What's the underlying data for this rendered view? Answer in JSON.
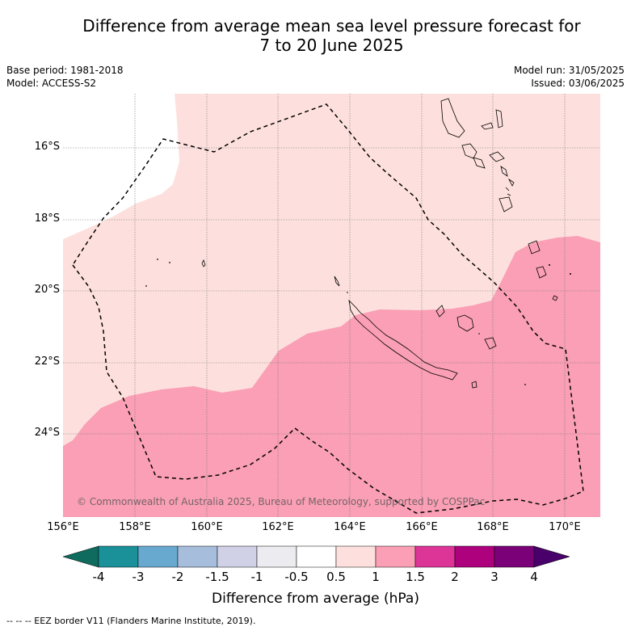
{
  "title_line1": "Difference from average mean sea level pressure forecast for",
  "title_line2": "7 to 20 June 2025",
  "meta": {
    "base_period": "Base period: 1981-2018",
    "model": "Model: ACCESS-S2",
    "model_run": "Model run: 31/05/2025",
    "issued": "Issued: 03/06/2025"
  },
  "axes": {
    "lat_labels": [
      "16°S",
      "18°S",
      "20°S",
      "22°S",
      "24°S"
    ],
    "lon_labels": [
      "156°E",
      "158°E",
      "160°E",
      "162°E",
      "164°E",
      "166°E",
      "168°E",
      "170°E"
    ]
  },
  "colorbar": {
    "labels": [
      "-4",
      "-3",
      "-2",
      "-1.5",
      "-1",
      "-0.5",
      "0.5",
      "1",
      "1.5",
      "2",
      "3",
      "4"
    ],
    "title": "Difference from average (hPa)",
    "colors": [
      "#0f6b5e",
      "#1a9099",
      "#67a9cf",
      "#a6bddb",
      "#d0d1e6",
      "#ececf0",
      "#ffffff",
      "#fde0dd",
      "#fa9fb5",
      "#dd3497",
      "#ae017e",
      "#7a0177",
      "#49006a"
    ]
  },
  "copyright": "© Commonwealth of Australia 2025, Bureau of Meteorology, supported by COSPPac",
  "footnote": "--  --  -- EEZ border V11 (Flanders Marine Institute, 2019).",
  "map_colors": {
    "white_zone": "#ffffff",
    "light_pink": "#fde0dd",
    "pink": "#fa9fb5"
  }
}
